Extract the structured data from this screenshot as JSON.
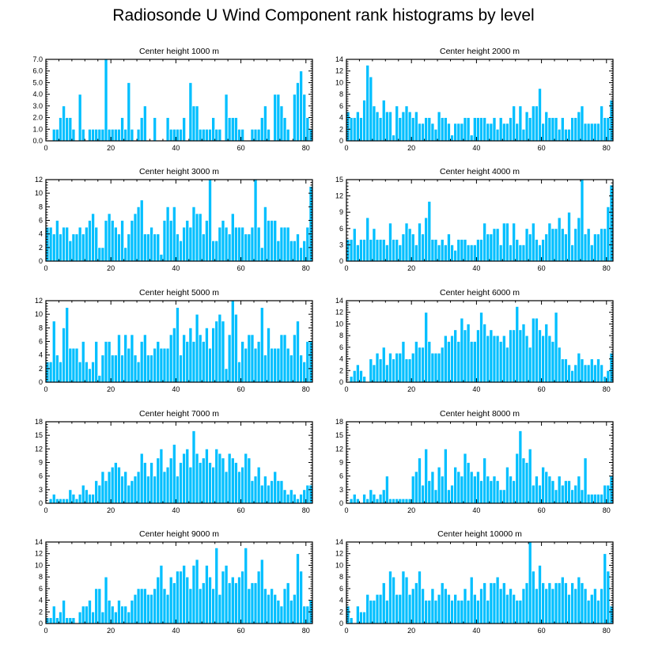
{
  "title": "Radiosonde U Wind Component rank histograms by level",
  "colors": {
    "bar": "#00bfff",
    "bar_edge": "#ffffff",
    "axis": "#000000"
  },
  "chart_data": [
    {
      "type": "bar",
      "title": "Center height 1000 m",
      "xlim": [
        0,
        82
      ],
      "ylim": [
        0,
        7
      ],
      "xticks": [
        0,
        20,
        40,
        60,
        80
      ],
      "xtick_labels": [
        "0",
        "20",
        "40",
        "60",
        "80"
      ],
      "yticks": [
        0,
        1,
        2,
        3,
        4,
        5,
        6,
        7
      ],
      "ytick_labels": [
        "0.0",
        "1.0",
        "2.0",
        "3.0",
        "4.0",
        "5.0",
        "6.0",
        "7.0"
      ],
      "values": [
        0,
        0,
        1,
        1,
        2,
        3,
        2,
        2,
        1,
        0,
        4,
        1,
        0,
        1,
        1,
        1,
        1,
        1,
        7,
        1,
        1,
        1,
        1,
        2,
        1,
        5,
        1,
        0,
        1,
        2,
        3,
        0,
        0,
        2,
        0,
        0,
        0,
        2,
        1,
        1,
        1,
        1,
        2,
        0,
        5,
        3,
        3,
        1,
        1,
        1,
        1,
        2,
        1,
        1,
        0,
        4,
        2,
        2,
        2,
        1,
        1,
        0,
        0,
        1,
        1,
        1,
        2,
        3,
        1,
        0,
        4,
        4,
        3,
        2,
        1,
        0,
        4,
        5,
        6,
        4,
        2,
        1
      ]
    },
    {
      "type": "bar",
      "title": "Center height 2000 m",
      "xlim": [
        0,
        82
      ],
      "ylim": [
        0,
        14
      ],
      "xticks": [
        0,
        20,
        40,
        60,
        80
      ],
      "xtick_labels": [
        "0",
        "20",
        "40",
        "60",
        "80"
      ],
      "yticks": [
        0,
        2,
        4,
        6,
        8,
        10,
        12,
        14
      ],
      "ytick_labels": [
        "0",
        "2",
        "4",
        "6",
        "8",
        "10",
        "12",
        "14"
      ],
      "values": [
        5,
        4,
        4,
        5,
        4,
        7,
        13,
        11,
        6,
        5,
        4,
        7,
        5,
        5,
        1,
        6,
        4,
        5,
        6,
        5,
        4,
        5,
        3,
        3,
        4,
        4,
        3,
        2,
        5,
        4,
        4,
        3,
        1,
        3,
        3,
        3,
        4,
        4,
        1,
        4,
        4,
        4,
        4,
        3,
        3,
        4,
        2,
        4,
        3,
        3,
        4,
        6,
        3,
        6,
        2,
        5,
        4,
        6,
        6,
        9,
        3,
        5,
        4,
        4,
        4,
        2,
        4,
        2,
        2,
        4,
        4,
        5,
        6,
        3,
        3,
        3,
        3,
        3,
        6,
        4,
        4,
        7
      ]
    },
    {
      "type": "bar",
      "title": "Center height 3000 m",
      "xlim": [
        0,
        82
      ],
      "ylim": [
        0,
        12
      ],
      "xticks": [
        0,
        20,
        40,
        60,
        80
      ],
      "xtick_labels": [
        "0",
        "20",
        "40",
        "60",
        "80"
      ],
      "yticks": [
        0,
        2,
        4,
        6,
        8,
        10,
        12
      ],
      "ytick_labels": [
        "0",
        "2",
        "4",
        "6",
        "8",
        "10",
        "12"
      ],
      "values": [
        5,
        5,
        4,
        6,
        4,
        5,
        5,
        3,
        4,
        4,
        5,
        4,
        5,
        6,
        7,
        5,
        2,
        2,
        6,
        7,
        6,
        5,
        4,
        6,
        2,
        4,
        6,
        7,
        8,
        9,
        4,
        4,
        5,
        4,
        4,
        1,
        6,
        8,
        6,
        8,
        4,
        3,
        5,
        6,
        5,
        8,
        7,
        7,
        4,
        6,
        12,
        3,
        3,
        5,
        6,
        5,
        4,
        7,
        5,
        5,
        5,
        4,
        4,
        5,
        12,
        5,
        2,
        8,
        6,
        6,
        6,
        3,
        5,
        5,
        5,
        3,
        3,
        4,
        2,
        3,
        5,
        11
      ]
    },
    {
      "type": "bar",
      "title": "Center height 4000 m",
      "xlim": [
        0,
        82
      ],
      "ylim": [
        0,
        15
      ],
      "xticks": [
        0,
        20,
        40,
        60,
        80
      ],
      "xtick_labels": [
        "0",
        "20",
        "40",
        "60",
        "80"
      ],
      "yticks": [
        0,
        3,
        6,
        9,
        12,
        15
      ],
      "ytick_labels": [
        "0",
        "3",
        "6",
        "9",
        "12",
        "15"
      ],
      "values": [
        4,
        4,
        6,
        3,
        4,
        4,
        8,
        4,
        6,
        4,
        4,
        4,
        3,
        7,
        4,
        4,
        3,
        5,
        7,
        6,
        5,
        3,
        7,
        5,
        8,
        11,
        4,
        4,
        3,
        4,
        3,
        5,
        3,
        2,
        4,
        4,
        4,
        3,
        3,
        3,
        4,
        4,
        7,
        5,
        5,
        6,
        6,
        3,
        7,
        7,
        3,
        7,
        4,
        3,
        3,
        6,
        5,
        7,
        4,
        3,
        4,
        5,
        7,
        6,
        6,
        8,
        6,
        5,
        9,
        3,
        6,
        8,
        15,
        5,
        6,
        3,
        5,
        5,
        6,
        6,
        10,
        14
      ]
    },
    {
      "type": "bar",
      "title": "Center height 5000 m",
      "xlim": [
        0,
        82
      ],
      "ylim": [
        0,
        12
      ],
      "xticks": [
        0,
        20,
        40,
        60,
        80
      ],
      "xtick_labels": [
        "0",
        "20",
        "40",
        "60",
        "80"
      ],
      "yticks": [
        0,
        2,
        4,
        6,
        8,
        10,
        12
      ],
      "ytick_labels": [
        "0",
        "2",
        "4",
        "6",
        "8",
        "10",
        "12"
      ],
      "values": [
        3,
        3,
        9,
        4,
        3,
        8,
        11,
        5,
        5,
        5,
        3,
        6,
        3,
        2,
        3,
        6,
        1,
        4,
        6,
        6,
        4,
        4,
        7,
        4,
        7,
        5,
        7,
        4,
        3,
        6,
        7,
        4,
        4,
        5,
        6,
        5,
        5,
        5,
        7,
        8,
        11,
        4,
        7,
        6,
        8,
        6,
        10,
        7,
        6,
        8,
        5,
        8,
        9,
        10,
        9,
        2,
        7,
        12,
        10,
        3,
        6,
        5,
        7,
        7,
        5,
        6,
        11,
        4,
        8,
        5,
        5,
        5,
        7,
        7,
        5,
        4,
        7,
        9,
        4,
        3,
        6,
        6
      ]
    },
    {
      "type": "bar",
      "title": "Center height 6000 m",
      "xlim": [
        0,
        82
      ],
      "ylim": [
        0,
        14
      ],
      "xticks": [
        0,
        20,
        40,
        60,
        80
      ],
      "xtick_labels": [
        "0",
        "20",
        "40",
        "60",
        "80"
      ],
      "yticks": [
        0,
        2,
        4,
        6,
        8,
        10,
        12,
        14
      ],
      "ytick_labels": [
        "0",
        "2",
        "4",
        "6",
        "8",
        "10",
        "12",
        "14"
      ],
      "values": [
        0,
        1,
        2,
        3,
        2,
        1,
        0,
        4,
        3,
        5,
        4,
        6,
        3,
        5,
        4,
        5,
        5,
        7,
        4,
        4,
        5,
        7,
        6,
        6,
        12,
        7,
        5,
        5,
        5,
        6,
        8,
        7,
        8,
        9,
        7,
        11,
        9,
        10,
        7,
        7,
        9,
        12,
        10,
        8,
        9,
        8,
        8,
        7,
        8,
        6,
        9,
        9,
        13,
        9,
        10,
        8,
        6,
        11,
        11,
        9,
        8,
        10,
        8,
        7,
        12,
        6,
        4,
        4,
        3,
        2,
        3,
        5,
        4,
        3,
        3,
        4,
        3,
        4,
        3,
        1,
        2,
        5
      ]
    },
    {
      "type": "bar",
      "title": "Center height 7000 m",
      "xlim": [
        0,
        82
      ],
      "ylim": [
        0,
        18
      ],
      "xticks": [
        0,
        20,
        40,
        60,
        80
      ],
      "xtick_labels": [
        "0",
        "20",
        "40",
        "60",
        "80"
      ],
      "yticks": [
        0,
        3,
        6,
        9,
        12,
        15,
        18
      ],
      "ytick_labels": [
        "0",
        "3",
        "6",
        "9",
        "12",
        "15",
        "18"
      ],
      "values": [
        0,
        1,
        2,
        1,
        1,
        1,
        1,
        3,
        2,
        1,
        2,
        4,
        3,
        2,
        2,
        5,
        4,
        7,
        5,
        7,
        8,
        9,
        8,
        6,
        7,
        4,
        5,
        6,
        7,
        11,
        9,
        6,
        9,
        6,
        10,
        12,
        7,
        8,
        10,
        13,
        6,
        9,
        11,
        12,
        8,
        16,
        11,
        9,
        10,
        12,
        9,
        8,
        12,
        11,
        10,
        7,
        11,
        10,
        9,
        7,
        8,
        11,
        10,
        5,
        6,
        8,
        4,
        6,
        4,
        5,
        7,
        5,
        5,
        3,
        2,
        3,
        2,
        1,
        2,
        3,
        4,
        4
      ]
    },
    {
      "type": "bar",
      "title": "Center height 8000 m",
      "xlim": [
        0,
        82
      ],
      "ylim": [
        0,
        18
      ],
      "xticks": [
        0,
        20,
        40,
        60,
        80
      ],
      "xtick_labels": [
        "0",
        "20",
        "40",
        "60",
        "80"
      ],
      "yticks": [
        0,
        3,
        6,
        9,
        12,
        15,
        18
      ],
      "ytick_labels": [
        "0",
        "3",
        "6",
        "9",
        "12",
        "15",
        "18"
      ],
      "values": [
        0,
        1,
        2,
        1,
        0,
        2,
        1,
        3,
        2,
        1,
        2,
        3,
        6,
        1,
        1,
        1,
        1,
        1,
        1,
        1,
        6,
        7,
        10,
        4,
        12,
        5,
        7,
        3,
        8,
        6,
        12,
        3,
        4,
        8,
        7,
        6,
        11,
        9,
        7,
        6,
        7,
        5,
        10,
        6,
        5,
        6,
        5,
        3,
        3,
        8,
        6,
        5,
        11,
        16,
        10,
        9,
        12,
        4,
        6,
        4,
        8,
        7,
        6,
        5,
        3,
        6,
        4,
        5,
        5,
        3,
        4,
        6,
        3,
        10,
        2,
        2,
        2,
        2,
        2,
        4,
        4,
        6
      ]
    },
    {
      "type": "bar",
      "title": "Center height 9000 m",
      "xlim": [
        0,
        82
      ],
      "ylim": [
        0,
        14
      ],
      "xticks": [
        0,
        20,
        40,
        60,
        80
      ],
      "xtick_labels": [
        "0",
        "20",
        "40",
        "60",
        "80"
      ],
      "yticks": [
        0,
        2,
        4,
        6,
        8,
        10,
        12,
        14
      ],
      "ytick_labels": [
        "0",
        "2",
        "4",
        "6",
        "8",
        "10",
        "12",
        "14"
      ],
      "values": [
        1,
        1,
        3,
        1,
        2,
        4,
        1,
        1,
        1,
        0,
        2,
        3,
        3,
        4,
        2,
        6,
        6,
        2,
        8,
        4,
        3,
        2,
        4,
        3,
        3,
        2,
        4,
        5,
        6,
        6,
        6,
        5,
        5,
        6,
        8,
        10,
        6,
        5,
        8,
        7,
        9,
        9,
        10,
        8,
        6,
        10,
        11,
        6,
        7,
        10,
        8,
        6,
        13,
        5,
        9,
        10,
        7,
        8,
        7,
        8,
        9,
        13,
        6,
        7,
        7,
        9,
        11,
        6,
        5,
        6,
        5,
        4,
        3,
        6,
        7,
        4,
        5,
        12,
        9,
        3,
        3,
        4
      ]
    },
    {
      "type": "bar",
      "title": "Center height 10000 m",
      "xlim": [
        0,
        82
      ],
      "ylim": [
        0,
        14
      ],
      "xticks": [
        0,
        20,
        40,
        60,
        80
      ],
      "xtick_labels": [
        "0",
        "20",
        "40",
        "60",
        "80"
      ],
      "yticks": [
        0,
        2,
        4,
        6,
        8,
        10,
        12,
        14
      ],
      "ytick_labels": [
        "0",
        "2",
        "4",
        "6",
        "8",
        "10",
        "12",
        "14"
      ],
      "values": [
        3,
        1,
        0,
        3,
        2,
        2,
        5,
        4,
        4,
        5,
        5,
        7,
        4,
        9,
        8,
        5,
        5,
        9,
        8,
        5,
        6,
        7,
        9,
        6,
        4,
        4,
        6,
        4,
        5,
        7,
        6,
        5,
        4,
        5,
        4,
        4,
        6,
        4,
        8,
        5,
        4,
        6,
        7,
        4,
        7,
        7,
        8,
        6,
        7,
        5,
        6,
        5,
        4,
        4,
        6,
        7,
        14,
        9,
        6,
        10,
        7,
        6,
        7,
        6,
        7,
        7,
        8,
        7,
        5,
        7,
        6,
        8,
        7,
        6,
        4,
        5,
        6,
        4,
        6,
        12,
        9,
        3
      ]
    }
  ]
}
